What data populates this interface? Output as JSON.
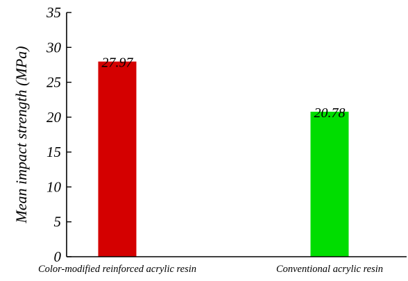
{
  "chart_data": {
    "type": "bar",
    "title": "",
    "xlabel": "",
    "ylabel": "Mean impact strength (MPa)",
    "categories": [
      "Color-modified reinforced acrylic resin",
      "Conventional acrylic resin"
    ],
    "values": [
      27.97,
      20.78
    ],
    "value_labels": [
      "27.97",
      "20.78"
    ],
    "bar_colors": [
      "#d40000",
      "#00dd00"
    ],
    "ylim": [
      0,
      35
    ],
    "yticks": [
      0,
      5,
      10,
      15,
      20,
      25,
      30,
      35
    ],
    "ytick_labels": [
      "0",
      "5",
      "10",
      "15",
      "20",
      "25",
      "30",
      "35"
    ],
    "grid": false,
    "legend": "none"
  }
}
